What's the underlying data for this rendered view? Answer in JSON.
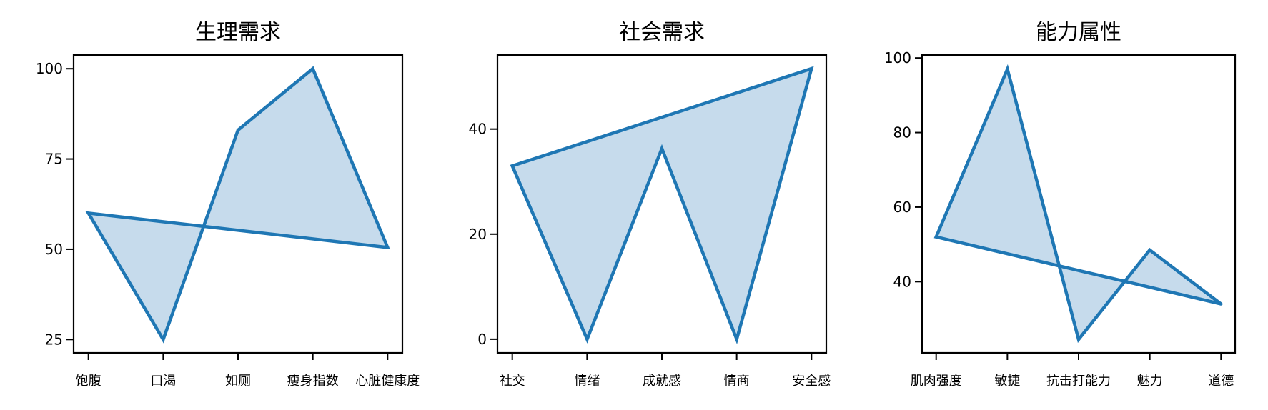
{
  "chart_data": [
    {
      "type": "area",
      "title": "生理需求",
      "categories": [
        "饱腹",
        "口渴",
        "如厕",
        "瘦身指数",
        "心脏健康度"
      ],
      "values": [
        60,
        25,
        83,
        100,
        50.5
      ],
      "ylim": [
        21.3,
        103.8
      ],
      "yticks": [
        25,
        50,
        75,
        100
      ],
      "closed_polygon": true,
      "grid": false,
      "xlabel": "",
      "ylabel": ""
    },
    {
      "type": "area",
      "title": "社会需求",
      "categories": [
        "社交",
        "情绪",
        "成就感",
        "情商",
        "安全感"
      ],
      "values": [
        33,
        0,
        36.3,
        0,
        51.5
      ],
      "ylim": [
        -2.6,
        54.1
      ],
      "yticks": [
        0,
        20,
        40
      ],
      "closed_polygon": true,
      "grid": false,
      "xlabel": "",
      "ylabel": ""
    },
    {
      "type": "area",
      "title": "能力属性",
      "categories": [
        "肌肉强度",
        "敏捷",
        "抗击打能力",
        "魅力",
        "道德"
      ],
      "values": [
        52,
        97,
        24.5,
        48.5,
        34
      ],
      "ylim": [
        20.9,
        100.8
      ],
      "yticks": [
        40,
        60,
        80,
        100
      ],
      "closed_polygon": true,
      "grid": false,
      "xlabel": "",
      "ylabel": ""
    }
  ],
  "colors": {
    "line": "#1f77b4",
    "fill": "#c6dbec",
    "axes": "#000000"
  }
}
